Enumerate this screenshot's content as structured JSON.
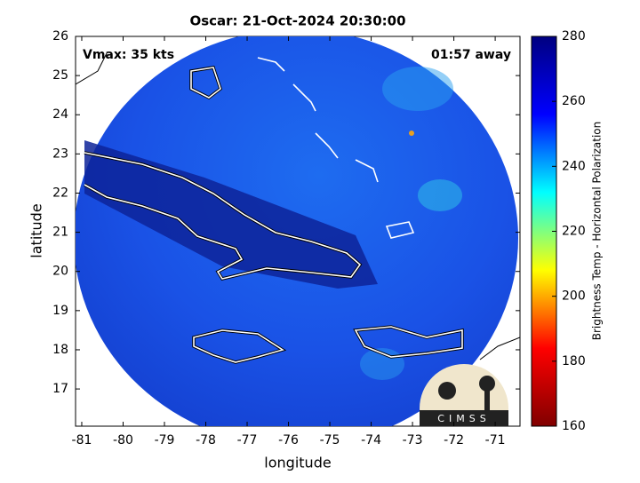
{
  "chart_data": {
    "type": "map",
    "title": "Oscar: 21-Oct-2024 20:30:00",
    "annotations": [
      "Vmax: 35 kts",
      "01:57 away"
    ],
    "x_label": "longitude",
    "y_label": "latitude",
    "xlim": [
      -81.15,
      -70.4
    ],
    "ylim": [
      16.05,
      26
    ],
    "xticks": [
      -81,
      -80,
      -79,
      -78,
      -77,
      -76,
      -75,
      -74,
      -73,
      -72,
      -71
    ],
    "yticks": [
      17,
      18,
      19,
      20,
      21,
      22,
      23,
      24,
      25,
      26
    ],
    "colorbar": {
      "label": "Brightness Temp - Horizontal Polarization",
      "lim": [
        160,
        280
      ],
      "ticks": [
        160,
        180,
        200,
        220,
        240,
        260,
        280
      ],
      "colormap": "jet"
    }
  },
  "logo": "CIMSS"
}
